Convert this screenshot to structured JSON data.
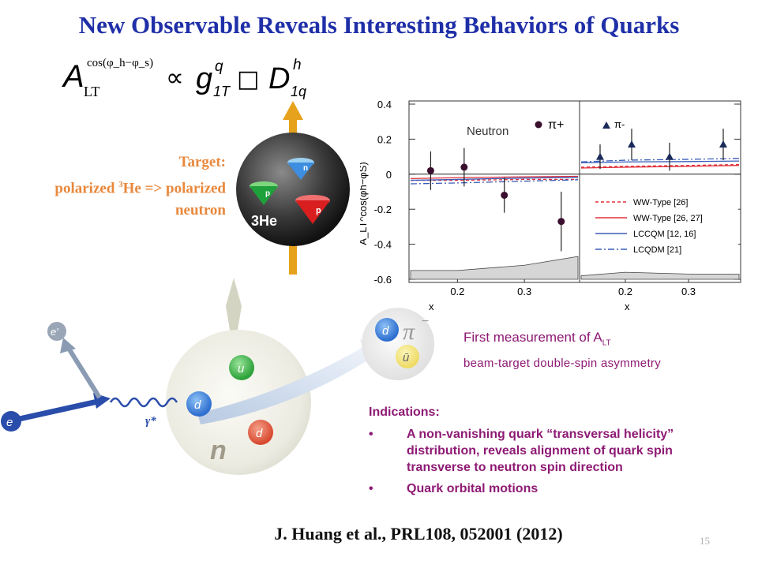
{
  "title": "New Observable Reveals Interesting Behaviors of Quarks",
  "formula": {
    "a": "A",
    "a_sup": "cos(φ_h−φ_s)",
    "a_sub": "LT",
    "prop": "∝",
    "g": "g",
    "g_sup": "q",
    "g_sub": "1T",
    "box": "□",
    "d": "D",
    "d_sup": "h",
    "d_sub": "1q"
  },
  "target": {
    "line1": "Target:",
    "line2_pre": "polarized ",
    "line2_sup": "3",
    "line2_post": "He => polarized",
    "line3": "neutron"
  },
  "he3_sphere": {
    "label": "3He",
    "quarks": [
      "n",
      "p",
      "p"
    ]
  },
  "chart_data": {
    "type": "scatter",
    "ylabel": "A_LT^cos(φh−φS)",
    "xlabel": "x",
    "ylim": [
      -0.6,
      0.4
    ],
    "yticks": [
      "0.4",
      "0.2",
      "0",
      "-0.2",
      "-0.4",
      "-0.6"
    ],
    "xticks": [
      "0.2",
      "0.3"
    ],
    "panel_label": "Neutron",
    "series": [
      {
        "name": "π+",
        "marker": "circle",
        "color": "#3a0f2e",
        "x": [
          0.16,
          0.21,
          0.27,
          0.355
        ],
        "y": [
          0.02,
          0.04,
          -0.12,
          -0.27
        ],
        "err": [
          0.11,
          0.11,
          0.1,
          0.17
        ]
      },
      {
        "name": "π-",
        "marker": "triangle",
        "color": "#1a2a5a",
        "x": [
          0.16,
          0.21,
          0.27,
          0.355
        ],
        "y": [
          0.1,
          0.17,
          0.1,
          0.17
        ],
        "err": [
          0.07,
          0.09,
          0.08,
          0.09
        ]
      }
    ],
    "legend": [
      {
        "label": "WW-Type [26]",
        "color": "#e0303a",
        "dash": "4,3"
      },
      {
        "label": "WW-Type [26, 27]",
        "color": "#e0303a",
        "dash": ""
      },
      {
        "label": "LCCQM [12, 16]",
        "color": "#3a5cb8",
        "dash": ""
      },
      {
        "label": "LCQDM [21]",
        "color": "#3a5cb8",
        "dash": "8,3,2,3"
      }
    ],
    "left_curves": {
      "x": [
        0.13,
        0.2,
        0.3,
        0.38
      ],
      "ww26": [
        -0.035,
        -0.035,
        -0.03,
        -0.03
      ],
      "ww2627": [
        -0.025,
        -0.02,
        -0.015,
        -0.012
      ],
      "lccqm": [
        -0.035,
        -0.03,
        -0.022,
        -0.018
      ],
      "lcqdm": [
        -0.055,
        -0.05,
        -0.04,
        -0.032
      ]
    },
    "right_curves": {
      "x": [
        0.13,
        0.2,
        0.3,
        0.38
      ],
      "ww26": [
        0.04,
        0.045,
        0.05,
        0.055
      ],
      "ww2627": [
        0.035,
        0.04,
        0.045,
        0.05
      ],
      "lccqm": [
        0.065,
        0.07,
        0.072,
        0.075
      ],
      "lcqdm": [
        0.07,
        0.08,
        0.085,
        0.09
      ]
    },
    "left_band": {
      "x": [
        0.13,
        0.2,
        0.3,
        0.38
      ],
      "y": [
        -0.55,
        -0.55,
        -0.52,
        -0.47
      ]
    },
    "right_band": {
      "x": [
        0.13,
        0.2,
        0.3,
        0.38
      ],
      "y": [
        -0.58,
        -0.56,
        -0.57,
        -0.57
      ]
    }
  },
  "scatter": {
    "e_in": "e",
    "e_out": "e′",
    "photon": "γ*",
    "u": "u",
    "d1": "d",
    "d2": "d",
    "n": "n"
  },
  "pion": {
    "symbol": "π",
    "charge": "−",
    "q1": "d",
    "q2": "ū"
  },
  "measurement": {
    "line1_pre": "First measurement of A",
    "line1_sub": "LT",
    "line2": "beam-target double-spin asymmetry"
  },
  "indications": {
    "title": "Indications:",
    "bullet": "•",
    "items": [
      [
        "A non-vanishing quark “transversal helicity”",
        "distribution, reveals alignment of quark spin",
        "transverse to neutron spin direction"
      ],
      [
        "Quark orbital motions"
      ]
    ]
  },
  "reference": "J. Huang et al., PRL108, 052001 (2012)",
  "page_number": "15",
  "colors": {
    "title": "#1f2fa8",
    "target": "#e8883c",
    "accent": "#8e1a74"
  }
}
